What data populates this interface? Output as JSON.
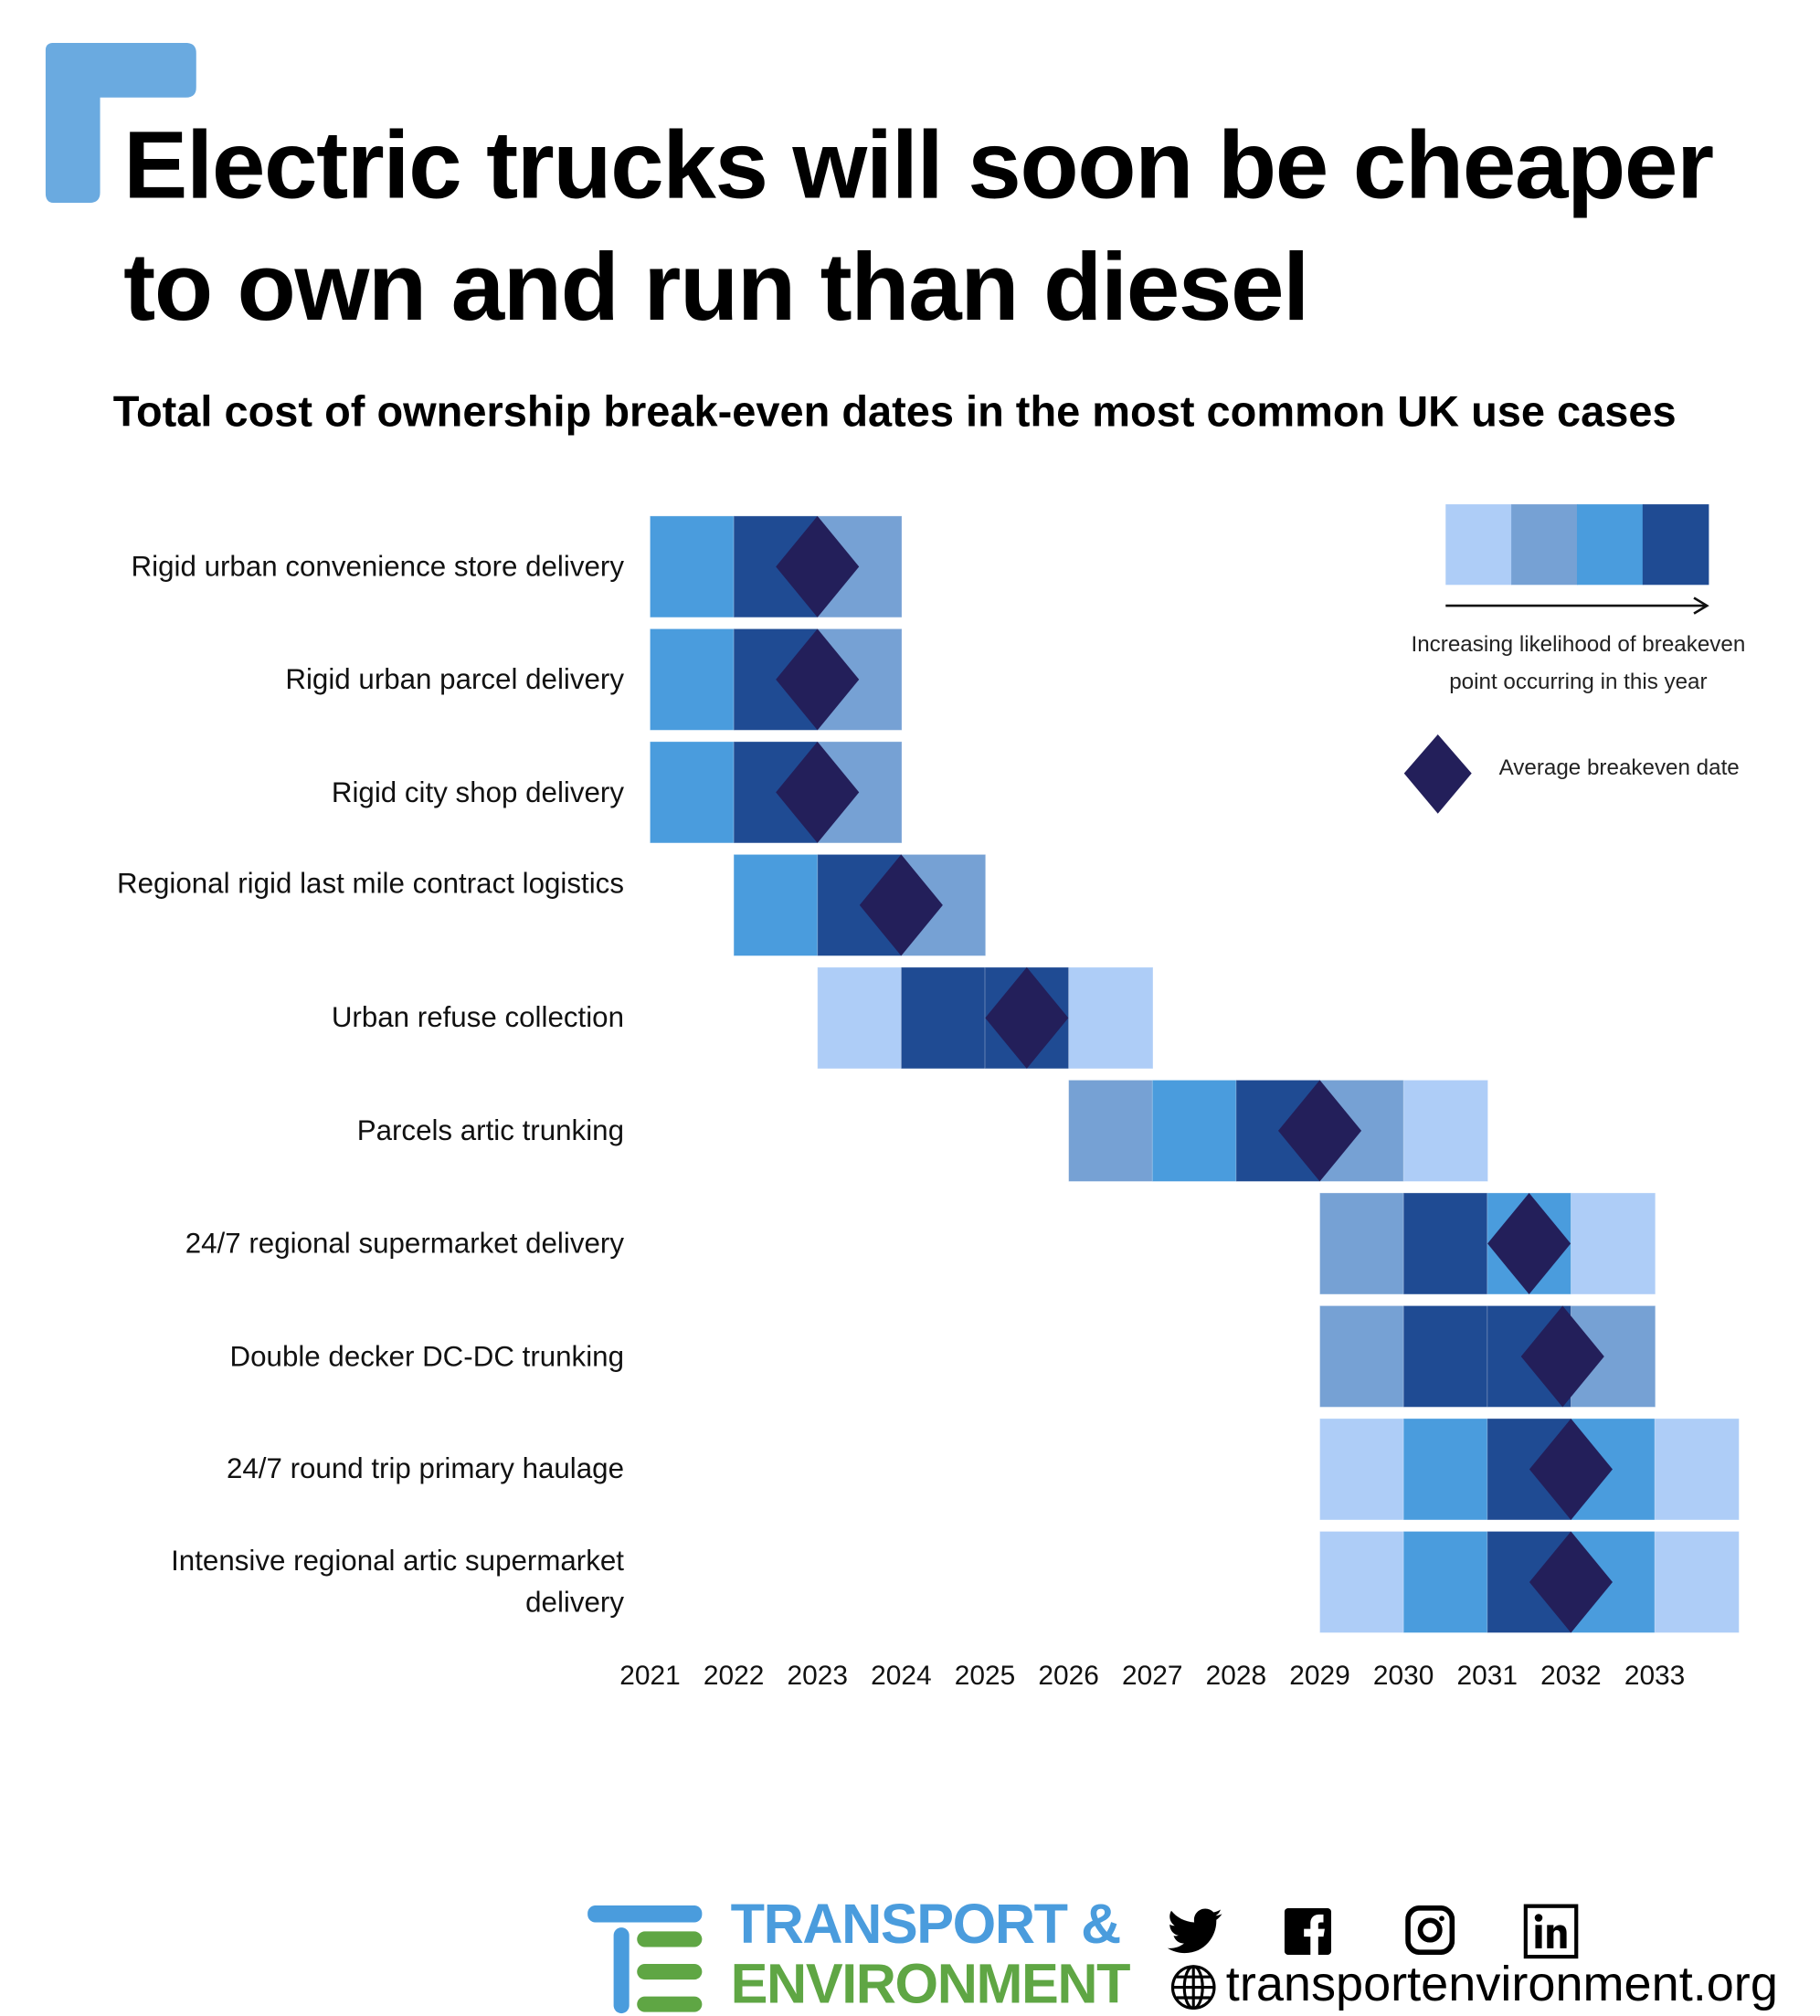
{
  "title_line1": "Electric trucks will soon be cheaper",
  "title_line2": "to own and run than diesel",
  "colors": {
    "bracket": "#6aaae0",
    "light": "#aecdf7",
    "mid": "#76a1d4",
    "bright": "#4a9cdd",
    "dark": "#1f4b93",
    "diamond": "#231f5a"
  },
  "chart_data": {
    "type": "heatmap",
    "title": "Total cost of ownership break-even dates in the most common UK use cases",
    "x_ticks": [
      "2021",
      "2022",
      "2023",
      "2024",
      "2025",
      "2026",
      "2027",
      "2028",
      "2029",
      "2030",
      "2031",
      "2032",
      "2033"
    ],
    "likelihood_levels": [
      "light",
      "mid",
      "bright",
      "dark"
    ],
    "rows": [
      {
        "label": "Rigid urban convenience store delivery",
        "cells": [
          {
            "year": 2021,
            "level": "bright"
          },
          {
            "year": 2022,
            "level": "dark"
          },
          {
            "year": 2023,
            "level": "mid"
          }
        ],
        "average": 2022.5
      },
      {
        "label": "Rigid urban parcel delivery",
        "cells": [
          {
            "year": 2021,
            "level": "bright"
          },
          {
            "year": 2022,
            "level": "dark"
          },
          {
            "year": 2023,
            "level": "mid"
          }
        ],
        "average": 2022.5
      },
      {
        "label": "Rigid city shop delivery",
        "cells": [
          {
            "year": 2021,
            "level": "bright"
          },
          {
            "year": 2022,
            "level": "dark"
          },
          {
            "year": 2023,
            "level": "mid"
          }
        ],
        "average": 2022.5
      },
      {
        "label": "Regional rigid last mile contract logistics",
        "cells": [
          {
            "year": 2022,
            "level": "bright"
          },
          {
            "year": 2023,
            "level": "dark"
          },
          {
            "year": 2024,
            "level": "mid"
          }
        ],
        "average": 2023.5
      },
      {
        "label": "Urban refuse collection",
        "cells": [
          {
            "year": 2023,
            "level": "light"
          },
          {
            "year": 2024,
            "level": "dark"
          },
          {
            "year": 2025,
            "level": "dark"
          },
          {
            "year": 2026,
            "level": "light"
          }
        ],
        "average": 2025.0
      },
      {
        "label": "Parcels artic trunking",
        "cells": [
          {
            "year": 2026,
            "level": "mid"
          },
          {
            "year": 2027,
            "level": "bright"
          },
          {
            "year": 2028,
            "level": "dark"
          },
          {
            "year": 2029,
            "level": "mid"
          },
          {
            "year": 2030,
            "level": "light"
          }
        ],
        "average": 2028.5
      },
      {
        "label": "24/7 regional supermarket delivery",
        "cells": [
          {
            "year": 2029,
            "level": "mid"
          },
          {
            "year": 2030,
            "level": "dark"
          },
          {
            "year": 2031,
            "level": "bright"
          },
          {
            "year": 2032,
            "level": "light"
          }
        ],
        "average": 2031.0
      },
      {
        "label": "Double decker DC-DC trunking",
        "cells": [
          {
            "year": 2029,
            "level": "mid"
          },
          {
            "year": 2030,
            "level": "dark"
          },
          {
            "year": 2031,
            "level": "dark"
          },
          {
            "year": 2032,
            "level": "mid"
          }
        ],
        "average": 2031.4
      },
      {
        "label": "24/7 round trip primary haulage",
        "cells": [
          {
            "year": 2029,
            "level": "light"
          },
          {
            "year": 2030,
            "level": "bright"
          },
          {
            "year": 2031,
            "level": "dark"
          },
          {
            "year": 2032,
            "level": "bright"
          },
          {
            "year": 2033,
            "level": "light"
          }
        ],
        "average": 2031.5
      },
      {
        "label": "Intensive regional artic supermarket delivery",
        "cells": [
          {
            "year": 2029,
            "level": "light"
          },
          {
            "year": 2030,
            "level": "bright"
          },
          {
            "year": 2031,
            "level": "dark"
          },
          {
            "year": 2032,
            "level": "bright"
          },
          {
            "year": 2033,
            "level": "light"
          }
        ],
        "average": 2031.5
      }
    ],
    "legend": {
      "scale_text_line1": "Increasing likelihood of breakeven",
      "scale_text_line2": "point occurring in this year",
      "diamond_text": "Average breakeven date",
      "placement": "top-right"
    }
  },
  "footer": {
    "logo_line1": "TRANSPORT &",
    "logo_line2": "ENVIRONMENT",
    "website": "transportenvironment.org",
    "social_icons": [
      "twitter-icon",
      "facebook-icon",
      "instagram-icon",
      "linkedin-icon"
    ]
  }
}
